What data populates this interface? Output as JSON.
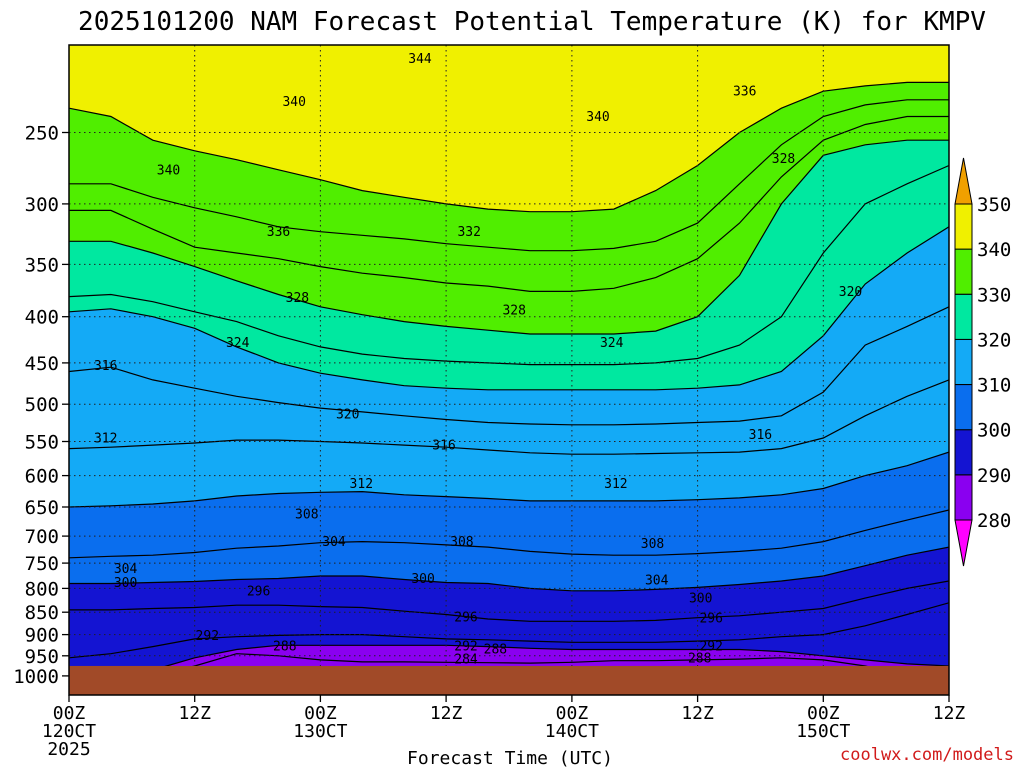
{
  "chart_data": {
    "type": "contour",
    "title": "2025101200 NAM Forecast Potential Temperature (K) for KMPV",
    "xlabel": "Forecast Time (UTC)",
    "credit": "coolwx.com/models",
    "x_hours": [
      0,
      12,
      24,
      36,
      48,
      60,
      72,
      84
    ],
    "x_tick_labels": [
      "00Z",
      "12Z",
      "00Z",
      "12Z",
      "00Z",
      "12Z",
      "00Z",
      "12Z"
    ],
    "x_date_labels": [
      {
        "hour": 0,
        "text": "120CT"
      },
      {
        "hour": 24,
        "text": "130CT"
      },
      {
        "hour": 48,
        "text": "140CT"
      },
      {
        "hour": 72,
        "text": "150CT"
      }
    ],
    "x_year_label": {
      "hour": 0,
      "text": "2025"
    },
    "y_unit": "hPa",
    "y_range_hpa": [
      200,
      1050
    ],
    "y_ticks_hpa": [
      250,
      300,
      350,
      400,
      450,
      500,
      550,
      600,
      650,
      700,
      750,
      800,
      850,
      900,
      950,
      1000
    ],
    "surface_pressure_hpa": 975,
    "ground_color": "#a14a28",
    "colorbar": {
      "levels": [
        280,
        290,
        300,
        310,
        320,
        330,
        340,
        350
      ],
      "colors": {
        "below_280": "#ff00ff",
        "280_290": "#8a00f0",
        "290_300": "#1414d2",
        "300_310": "#0a6eee",
        "310_320": "#14aaf6",
        "320_330": "#00e8a0",
        "330_340": "#50ee00",
        "340_350": "#f0f000",
        "above_350": "#f0a000"
      }
    },
    "isentropes": [
      {
        "theta": 284,
        "hpa": [
          1000,
          1000,
          1000,
          975,
          945,
          950,
          960,
          965,
          965,
          966,
          967,
          968,
          966,
          962,
          962,
          960,
          958,
          955,
          960,
          975,
          1000,
          1000
        ]
      },
      {
        "theta": 288,
        "hpa": [
          1000,
          1000,
          985,
          955,
          935,
          925,
          925,
          925,
          925,
          925,
          928,
          932,
          935,
          935,
          935,
          935,
          935,
          940,
          950,
          960,
          970,
          975
        ]
      },
      {
        "theta": 292,
        "hpa": [
          955,
          945,
          928,
          910,
          905,
          902,
          900,
          900,
          905,
          910,
          912,
          915,
          918,
          918,
          918,
          915,
          912,
          905,
          900,
          880,
          855,
          830
        ]
      },
      {
        "theta": 296,
        "hpa": [
          845,
          845,
          842,
          840,
          835,
          835,
          838,
          840,
          848,
          855,
          865,
          870,
          870,
          870,
          868,
          862,
          858,
          850,
          842,
          820,
          800,
          785
        ]
      },
      {
        "theta": 300,
        "hpa": [
          790,
          790,
          788,
          786,
          782,
          780,
          775,
          775,
          782,
          788,
          790,
          800,
          805,
          805,
          802,
          798,
          792,
          785,
          775,
          755,
          735,
          720
        ]
      },
      {
        "theta": 304,
        "hpa": [
          740,
          737,
          735,
          730,
          722,
          718,
          712,
          710,
          712,
          716,
          720,
          728,
          733,
          735,
          735,
          732,
          728,
          722,
          710,
          690,
          672,
          655
        ]
      },
      {
        "theta": 308,
        "hpa": [
          650,
          648,
          645,
          640,
          632,
          628,
          626,
          625,
          630,
          633,
          636,
          640,
          640,
          640,
          640,
          638,
          635,
          630,
          620,
          600,
          585,
          565
        ]
      },
      {
        "theta": 312,
        "hpa": [
          560,
          558,
          555,
          552,
          548,
          548,
          550,
          552,
          555,
          558,
          562,
          566,
          568,
          568,
          567,
          566,
          565,
          560,
          545,
          515,
          490,
          470
        ]
      },
      {
        "theta": 316,
        "hpa": [
          460,
          455,
          470,
          480,
          490,
          498,
          505,
          510,
          515,
          520,
          524,
          526,
          527,
          527,
          526,
          524,
          522,
          515,
          485,
          430,
          410,
          390
        ]
      },
      {
        "theta": 320,
        "hpa": [
          395,
          392,
          400,
          412,
          432,
          450,
          462,
          470,
          477,
          480,
          482,
          482,
          482,
          482,
          482,
          480,
          476,
          460,
          420,
          368,
          340,
          318
        ]
      },
      {
        "theta": 324,
        "hpa": [
          380,
          378,
          385,
          395,
          405,
          420,
          432,
          440,
          445,
          448,
          450,
          452,
          452,
          452,
          450,
          445,
          430,
          400,
          340,
          300,
          285,
          272
        ]
      },
      {
        "theta": 328,
        "hpa": [
          330,
          330,
          340,
          352,
          365,
          378,
          390,
          398,
          405,
          410,
          414,
          418,
          418,
          418,
          415,
          400,
          360,
          300,
          265,
          258,
          255,
          255
        ]
      },
      {
        "theta": 332,
        "hpa": [
          305,
          305,
          320,
          335,
          340,
          345,
          352,
          358,
          362,
          367,
          370,
          375,
          375,
          372,
          362,
          345,
          315,
          280,
          255,
          245,
          240,
          240
        ]
      },
      {
        "theta": 336,
        "hpa": [
          285,
          285,
          295,
          303,
          310,
          318,
          322,
          325,
          328,
          332,
          335,
          338,
          338,
          336,
          330,
          315,
          285,
          258,
          240,
          233,
          230,
          230
        ]
      },
      {
        "theta": 340,
        "hpa": [
          235,
          240,
          255,
          262,
          268,
          275,
          282,
          290,
          295,
          300,
          304,
          306,
          306,
          304,
          290,
          272,
          250,
          235,
          225,
          222,
          220,
          220
        ]
      }
    ],
    "contour_labels": [
      {
        "text": "344",
        "hour": 33.5,
        "hpa": 207
      },
      {
        "text": "340",
        "hour": 21.5,
        "hpa": 231
      },
      {
        "text": "336",
        "hour": 64.5,
        "hpa": 225
      },
      {
        "text": "340",
        "hour": 50.5,
        "hpa": 240
      },
      {
        "text": "340",
        "hour": 9.5,
        "hpa": 275
      },
      {
        "text": "328",
        "hour": 68.2,
        "hpa": 267
      },
      {
        "text": "336",
        "hour": 20,
        "hpa": 322
      },
      {
        "text": "332",
        "hour": 38.2,
        "hpa": 322
      },
      {
        "text": "320",
        "hour": 74.6,
        "hpa": 375
      },
      {
        "text": "328",
        "hour": 21.8,
        "hpa": 381
      },
      {
        "text": "328",
        "hour": 42.5,
        "hpa": 393
      },
      {
        "text": "324",
        "hour": 16.1,
        "hpa": 427
      },
      {
        "text": "324",
        "hour": 51.8,
        "hpa": 427
      },
      {
        "text": "316",
        "hour": 3.5,
        "hpa": 453
      },
      {
        "text": "320",
        "hour": 26.6,
        "hpa": 513
      },
      {
        "text": "316",
        "hour": 66,
        "hpa": 540
      },
      {
        "text": "312",
        "hour": 3.5,
        "hpa": 545
      },
      {
        "text": "316",
        "hour": 35.8,
        "hpa": 555
      },
      {
        "text": "312",
        "hour": 27.9,
        "hpa": 612
      },
      {
        "text": "312",
        "hour": 52.2,
        "hpa": 612
      },
      {
        "text": "308",
        "hour": 22.7,
        "hpa": 662
      },
      {
        "text": "304",
        "hour": 25.3,
        "hpa": 710
      },
      {
        "text": "308",
        "hour": 37.5,
        "hpa": 710
      },
      {
        "text": "308",
        "hour": 55.7,
        "hpa": 713
      },
      {
        "text": "304",
        "hour": 5.4,
        "hpa": 760
      },
      {
        "text": "300",
        "hour": 5.4,
        "hpa": 788
      },
      {
        "text": "300",
        "hour": 33.8,
        "hpa": 780
      },
      {
        "text": "296",
        "hour": 18.1,
        "hpa": 805
      },
      {
        "text": "304",
        "hour": 56.1,
        "hpa": 783
      },
      {
        "text": "300",
        "hour": 60.3,
        "hpa": 820
      },
      {
        "text": "296",
        "hour": 37.9,
        "hpa": 860
      },
      {
        "text": "296",
        "hour": 61.3,
        "hpa": 863
      },
      {
        "text": "292",
        "hour": 13.2,
        "hpa": 902
      },
      {
        "text": "288",
        "hour": 20.6,
        "hpa": 927
      },
      {
        "text": "292",
        "hour": 37.9,
        "hpa": 927
      },
      {
        "text": "288",
        "hour": 40.7,
        "hpa": 934
      },
      {
        "text": "292",
        "hour": 61.3,
        "hpa": 927
      },
      {
        "text": "284",
        "hour": 37.9,
        "hpa": 958
      },
      {
        "text": "288",
        "hour": 60.2,
        "hpa": 955
      }
    ]
  }
}
